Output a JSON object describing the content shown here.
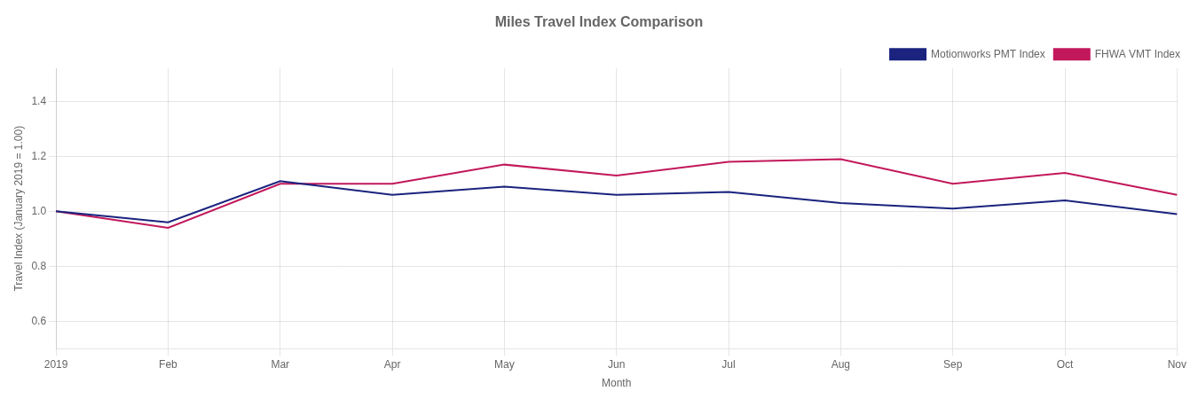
{
  "chart_data": {
    "type": "line",
    "title": "Miles Travel Index Comparison",
    "x_label": "Month",
    "y_label": "Travel Index (January 2019 = 1.00)",
    "categories": [
      "2019",
      "Feb",
      "Mar",
      "Apr",
      "May",
      "Jun",
      "Jul",
      "Aug",
      "Sep",
      "Oct",
      "Nov"
    ],
    "series": [
      {
        "name": "Motionworks PMT Index",
        "color": "#1a237e",
        "values": [
          1.0,
          0.96,
          1.11,
          1.06,
          1.09,
          1.06,
          1.07,
          1.03,
          1.01,
          1.04,
          0.99
        ]
      },
      {
        "name": "FHWA VMT Index",
        "color": "#c2185b",
        "values": [
          1.0,
          0.94,
          1.1,
          1.1,
          1.17,
          1.13,
          1.18,
          1.19,
          1.1,
          1.14,
          1.06
        ]
      }
    ],
    "ylim": [
      0.5,
      1.52
    ],
    "yticks": [
      0.6,
      0.8,
      {
        "value": 1.0,
        "label": "1.0"
      },
      1.2,
      1.4
    ],
    "grid": true,
    "legend": "upper right"
  }
}
